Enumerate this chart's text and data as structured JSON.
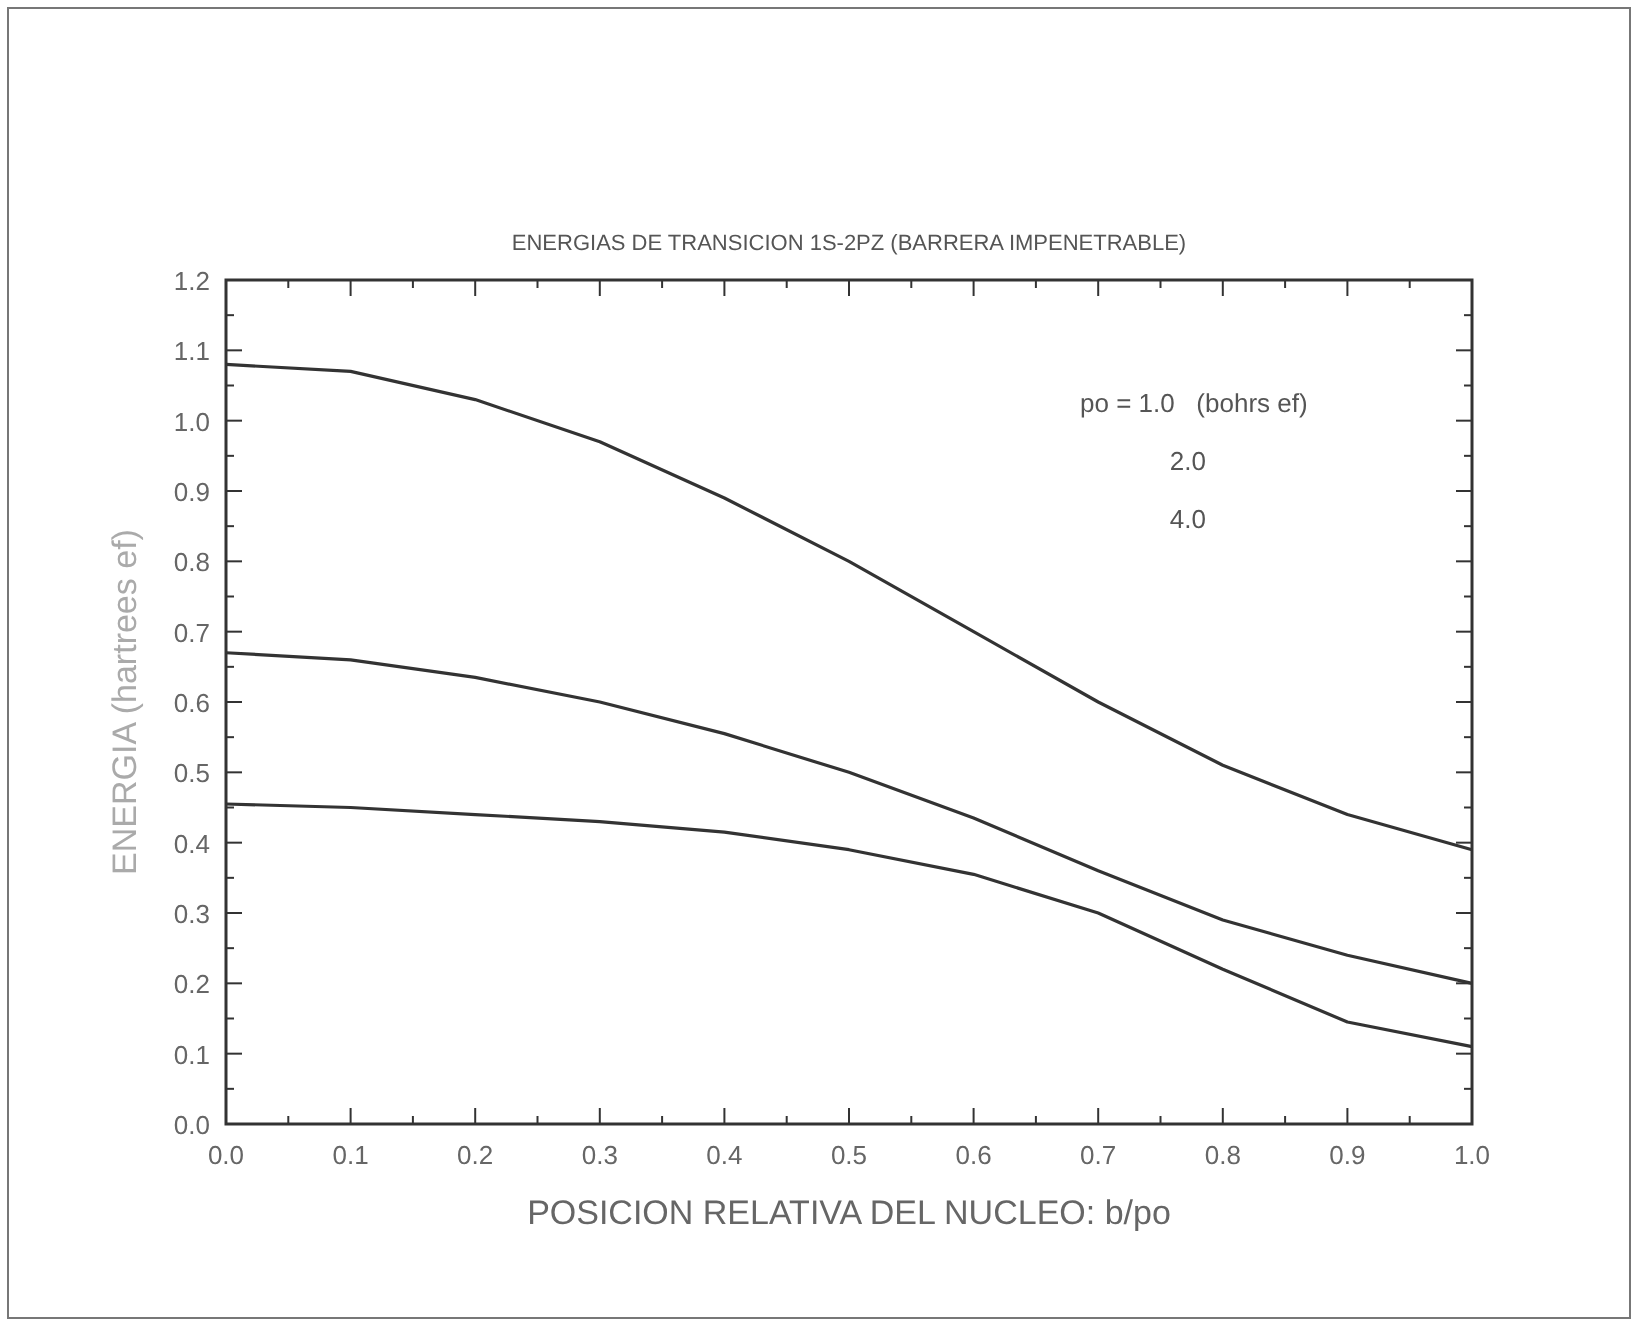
{
  "chart_data": {
    "type": "line",
    "title": "ENERGIAS DE TRANSICION 1S-2PZ (BARRERA IMPENETRABLE)",
    "xlabel": "POSICION RELATIVA DEL NUCLEO: b/po",
    "ylabel": "ENERGIA (hartrees ef)",
    "x": [
      0,
      0.1,
      0.2,
      0.3,
      0.4,
      0.5,
      0.6,
      0.7,
      0.8,
      0.9,
      1.0
    ],
    "series": [
      {
        "color": "#333333",
        "values": [
          1.08,
          1.07,
          1.03,
          0.97,
          0.89,
          0.8,
          0.7,
          0.6,
          0.51,
          0.44,
          0.39
        ]
      },
      {
        "color": "#333333",
        "values": [
          0.67,
          0.66,
          0.635,
          0.6,
          0.555,
          0.5,
          0.435,
          0.36,
          0.29,
          0.24,
          0.2
        ]
      },
      {
        "color": "#333333",
        "values": [
          0.455,
          0.45,
          0.44,
          0.43,
          0.415,
          0.39,
          0.355,
          0.3,
          0.22,
          0.145,
          0.11
        ]
      }
    ],
    "xlim": [
      0,
      1
    ],
    "ylim": [
      0,
      1.2
    ],
    "xticks": [
      {
        "value": 0,
        "label": "0.0"
      },
      {
        "value": 0.05,
        "label": null
      },
      {
        "value": 0.1,
        "label": "0.1"
      },
      {
        "value": 0.15,
        "label": null
      },
      {
        "value": 0.2,
        "label": "0.2"
      },
      {
        "value": 0.25,
        "label": null
      },
      {
        "value": 0.3,
        "label": "0.3"
      },
      {
        "value": 0.35,
        "label": null
      },
      {
        "value": 0.4,
        "label": "0.4"
      },
      {
        "value": 0.45,
        "label": null
      },
      {
        "value": 0.5,
        "label": "0.5"
      },
      {
        "value": 0.55,
        "label": null
      },
      {
        "value": 0.6,
        "label": "0.6"
      },
      {
        "value": 0.65,
        "label": null
      },
      {
        "value": 0.7,
        "label": "0.7"
      },
      {
        "value": 0.75,
        "label": null
      },
      {
        "value": 0.8,
        "label": "0.8"
      },
      {
        "value": 0.85,
        "label": null
      },
      {
        "value": 0.9,
        "label": "0.9"
      },
      {
        "value": 0.95,
        "label": null
      },
      {
        "value": 1,
        "label": "1.0"
      }
    ],
    "yticks": [
      {
        "value": 0,
        "label": "0.0"
      },
      {
        "value": 0.05,
        "label": null
      },
      {
        "value": 0.1,
        "label": "0.1"
      },
      {
        "value": 0.15,
        "label": null
      },
      {
        "value": 0.2,
        "label": "0.2"
      },
      {
        "value": 0.25,
        "label": null
      },
      {
        "value": 0.3,
        "label": "0.3"
      },
      {
        "value": 0.35,
        "label": null
      },
      {
        "value": 0.4,
        "label": "0.4"
      },
      {
        "value": 0.45,
        "label": null
      },
      {
        "value": 0.5,
        "label": "0.5"
      },
      {
        "value": 0.55,
        "label": null
      },
      {
        "value": 0.6,
        "label": "0.6"
      },
      {
        "value": 0.65,
        "label": null
      },
      {
        "value": 0.7,
        "label": "0.7"
      },
      {
        "value": 0.75,
        "label": null
      },
      {
        "value": 0.8,
        "label": "0.8"
      },
      {
        "value": 0.85,
        "label": null
      },
      {
        "value": 0.9,
        "label": "0.9"
      },
      {
        "value": 0.95,
        "label": null
      },
      {
        "value": 1,
        "label": "1.0"
      },
      {
        "value": 1.05,
        "label": null
      },
      {
        "value": 1.1,
        "label": "1.1"
      },
      {
        "value": 1.15,
        "label": null
      },
      {
        "value": 1.2,
        "label": "1.2"
      }
    ],
    "annotations": [
      "po = 1.0   (bohrs ef)",
      "2.0",
      "4.0"
    ],
    "grid": false,
    "marker": "none",
    "line_style": "solid"
  }
}
